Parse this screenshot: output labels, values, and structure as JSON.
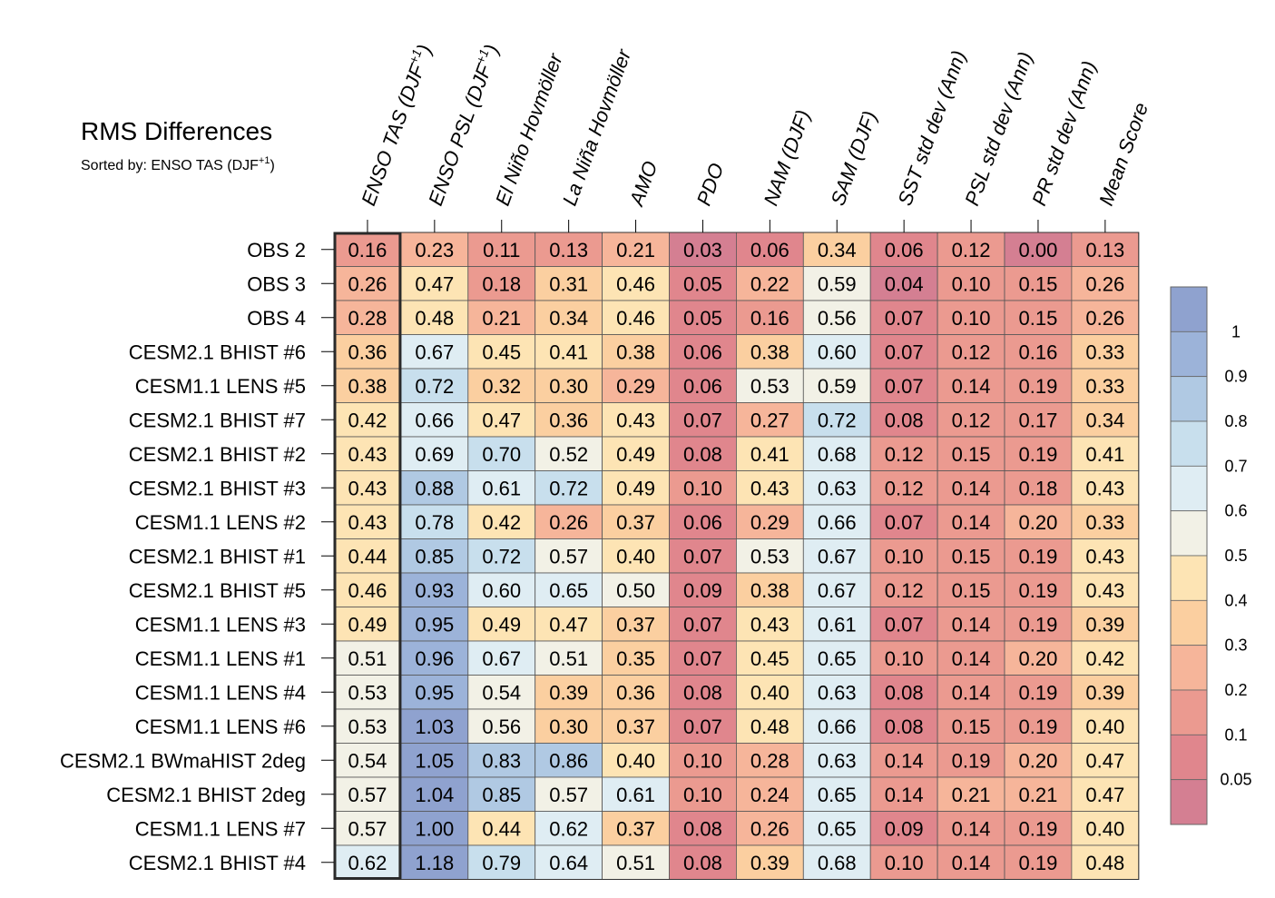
{
  "chart_data": {
    "type": "heatmap",
    "title": "RMS Differences",
    "subtitle": "Sorted by: ENSO TAS (DJF",
    "subtitle_sup": "+1",
    "subtitle_end": ")",
    "columns": [
      {
        "label": "ENSO TAS (DJF",
        "sup": "+1",
        "end": ")"
      },
      {
        "label": "ENSO PSL (DJF",
        "sup": "+1",
        "end": ")"
      },
      {
        "label": "El Niño Hovmöller"
      },
      {
        "label": "La Niña Hovmöller"
      },
      {
        "label": "AMO"
      },
      {
        "label": "PDO"
      },
      {
        "label": "NAM (DJF)"
      },
      {
        "label": "SAM (DJF)"
      },
      {
        "label": "SST std dev (Ann)"
      },
      {
        "label": "PSL std dev (Ann)"
      },
      {
        "label": "PR std dev (Ann)"
      },
      {
        "label": "Mean Score"
      }
    ],
    "highlighted_column": 0,
    "rows": [
      {
        "label": "OBS 2",
        "values": [
          "0.16",
          "0.23",
          "0.11",
          "0.13",
          "0.21",
          "0.03",
          "0.06",
          "0.34",
          "0.06",
          "0.12",
          "0.00",
          "0.13"
        ]
      },
      {
        "label": "OBS 3",
        "values": [
          "0.26",
          "0.47",
          "0.18",
          "0.31",
          "0.46",
          "0.05",
          "0.22",
          "0.59",
          "0.04",
          "0.10",
          "0.15",
          "0.26"
        ]
      },
      {
        "label": "OBS 4",
        "values": [
          "0.28",
          "0.48",
          "0.21",
          "0.34",
          "0.46",
          "0.05",
          "0.16",
          "0.56",
          "0.07",
          "0.10",
          "0.15",
          "0.26"
        ]
      },
      {
        "label": "CESM2.1 BHIST #6",
        "values": [
          "0.36",
          "0.67",
          "0.45",
          "0.41",
          "0.38",
          "0.06",
          "0.38",
          "0.60",
          "0.07",
          "0.12",
          "0.16",
          "0.33"
        ]
      },
      {
        "label": "CESM1.1 LENS #5",
        "values": [
          "0.38",
          "0.72",
          "0.32",
          "0.30",
          "0.29",
          "0.06",
          "0.53",
          "0.59",
          "0.07",
          "0.14",
          "0.19",
          "0.33"
        ]
      },
      {
        "label": "CESM2.1 BHIST #7",
        "values": [
          "0.42",
          "0.66",
          "0.47",
          "0.36",
          "0.43",
          "0.07",
          "0.27",
          "0.72",
          "0.08",
          "0.12",
          "0.17",
          "0.34"
        ]
      },
      {
        "label": "CESM2.1 BHIST #2",
        "values": [
          "0.43",
          "0.69",
          "0.70",
          "0.52",
          "0.49",
          "0.08",
          "0.41",
          "0.68",
          "0.12",
          "0.15",
          "0.19",
          "0.41"
        ]
      },
      {
        "label": "CESM2.1 BHIST #3",
        "values": [
          "0.43",
          "0.88",
          "0.61",
          "0.72",
          "0.49",
          "0.10",
          "0.43",
          "0.63",
          "0.12",
          "0.14",
          "0.18",
          "0.43"
        ]
      },
      {
        "label": "CESM1.1 LENS #2",
        "values": [
          "0.43",
          "0.78",
          "0.42",
          "0.26",
          "0.37",
          "0.06",
          "0.29",
          "0.66",
          "0.07",
          "0.14",
          "0.20",
          "0.33"
        ]
      },
      {
        "label": "CESM2.1 BHIST #1",
        "values": [
          "0.44",
          "0.85",
          "0.72",
          "0.57",
          "0.40",
          "0.07",
          "0.53",
          "0.67",
          "0.10",
          "0.15",
          "0.19",
          "0.43"
        ]
      },
      {
        "label": "CESM2.1 BHIST #5",
        "values": [
          "0.46",
          "0.93",
          "0.60",
          "0.65",
          "0.50",
          "0.09",
          "0.38",
          "0.67",
          "0.12",
          "0.15",
          "0.19",
          "0.43"
        ]
      },
      {
        "label": "CESM1.1 LENS #3",
        "values": [
          "0.49",
          "0.95",
          "0.49",
          "0.47",
          "0.37",
          "0.07",
          "0.43",
          "0.61",
          "0.07",
          "0.14",
          "0.19",
          "0.39"
        ]
      },
      {
        "label": "CESM1.1 LENS #1",
        "values": [
          "0.51",
          "0.96",
          "0.67",
          "0.51",
          "0.35",
          "0.07",
          "0.45",
          "0.65",
          "0.10",
          "0.14",
          "0.20",
          "0.42"
        ]
      },
      {
        "label": "CESM1.1 LENS #4",
        "values": [
          "0.53",
          "0.95",
          "0.54",
          "0.39",
          "0.36",
          "0.08",
          "0.40",
          "0.63",
          "0.08",
          "0.14",
          "0.19",
          "0.39"
        ]
      },
      {
        "label": "CESM1.1 LENS #6",
        "values": [
          "0.53",
          "1.03",
          "0.56",
          "0.30",
          "0.37",
          "0.07",
          "0.48",
          "0.66",
          "0.08",
          "0.15",
          "0.19",
          "0.40"
        ]
      },
      {
        "label": "CESM2.1 BWmaHIST 2deg",
        "values": [
          "0.54",
          "1.05",
          "0.83",
          "0.86",
          "0.40",
          "0.10",
          "0.28",
          "0.63",
          "0.14",
          "0.19",
          "0.20",
          "0.47"
        ]
      },
      {
        "label": "CESM2.1 BHIST 2deg",
        "values": [
          "0.57",
          "1.04",
          "0.85",
          "0.57",
          "0.61",
          "0.10",
          "0.24",
          "0.65",
          "0.14",
          "0.21",
          "0.21",
          "0.47"
        ]
      },
      {
        "label": "CESM1.1 LENS #7",
        "values": [
          "0.57",
          "1.00",
          "0.44",
          "0.62",
          "0.37",
          "0.08",
          "0.26",
          "0.65",
          "0.09",
          "0.14",
          "0.19",
          "0.40"
        ]
      },
      {
        "label": "CESM2.1 BHIST #4",
        "values": [
          "0.62",
          "1.18",
          "0.79",
          "0.64",
          "0.51",
          "0.08",
          "0.39",
          "0.68",
          "0.10",
          "0.14",
          "0.19",
          "0.48"
        ]
      }
    ],
    "colorbar": {
      "boundaries": [
        0.05,
        0.1,
        0.2,
        0.3,
        0.4,
        0.5,
        0.6,
        0.7,
        0.8,
        0.9,
        1
      ],
      "tick_labels": [
        "1",
        "0.9",
        "0.8",
        "0.7",
        "0.6",
        "0.5",
        "0.4",
        "0.3",
        "0.2",
        "0.1",
        "0.05"
      ],
      "colors": [
        "#d47f92",
        "#e0868d",
        "#eb9a90",
        "#f6b59a",
        "#fbcfa0",
        "#fde4b4",
        "#f2f1e6",
        "#dfedf3",
        "#c8dfed",
        "#b0c9e3",
        "#9cb3d9",
        "#8fa2cf"
      ],
      "legend_position": "right"
    }
  }
}
